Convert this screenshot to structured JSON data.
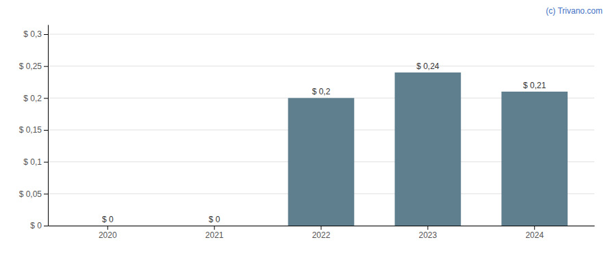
{
  "chart_data": {
    "type": "bar",
    "categories": [
      "2020",
      "2021",
      "2022",
      "2023",
      "2024"
    ],
    "values": [
      0.0,
      0.0,
      0.2,
      0.24,
      0.21
    ],
    "value_labels": [
      "$ 0",
      "$ 0",
      "$ 0,2",
      "$ 0,24",
      "$ 0,21"
    ],
    "data_labels": true,
    "color": "#5f7f8e",
    "ylim": [
      0,
      0.315
    ],
    "yticks": [
      {
        "value": 0.0,
        "label": "$ 0"
      },
      {
        "value": 0.05,
        "label": "$ 0,05"
      },
      {
        "value": 0.1,
        "label": "$ 0,1"
      },
      {
        "value": 0.15,
        "label": "$ 0,15"
      },
      {
        "value": 0.2,
        "label": "$ 0,2"
      },
      {
        "value": 0.25,
        "label": "$ 0,25"
      },
      {
        "value": 0.3,
        "label": "$ 0,3"
      }
    ],
    "grid": true,
    "annotations": [
      {
        "text": "(c) Trivano.com",
        "color": "#4472c4"
      }
    ]
  }
}
